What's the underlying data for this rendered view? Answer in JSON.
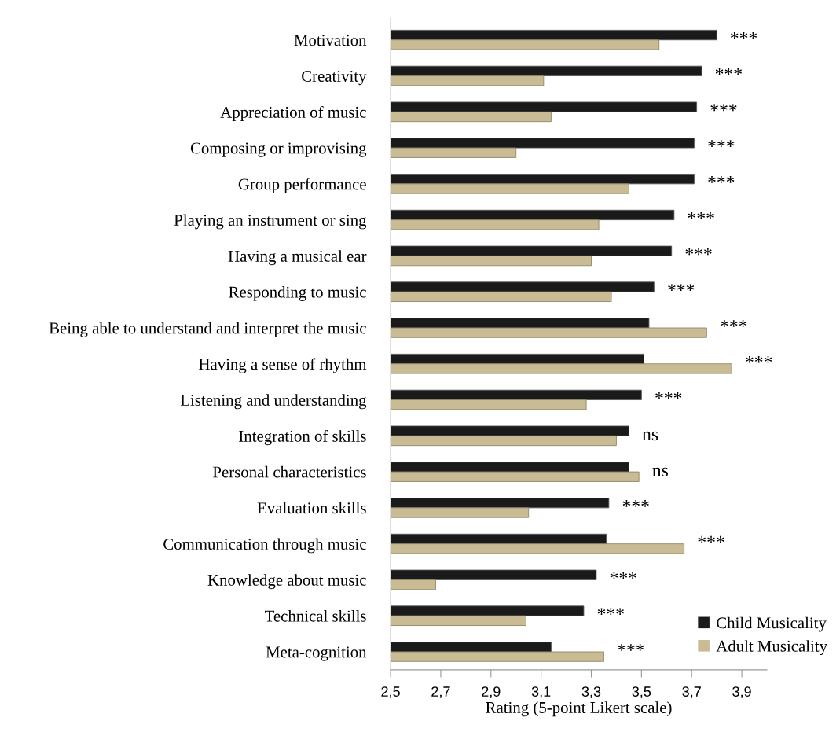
{
  "chart_data": {
    "type": "bar",
    "orientation": "horizontal",
    "xlabel": "Rating (5-point Likert scale)",
    "categories": [
      "Motivation",
      "Creativity",
      "Appreciation of music",
      "Composing or improvising",
      "Group performance",
      "Playing an instrument or sing",
      "Having a musical ear",
      "Responding to music",
      "Being able to understand and interpret the music",
      "Having a sense of rhythm",
      "Listening and understanding",
      "Integration of skills",
      "Personal characteristics",
      "Evaluation skills",
      "Communication through music",
      "Knowledge about music",
      "Technical skills",
      "Meta-cognition"
    ],
    "series": [
      {
        "name": "Child Musicality",
        "color": "#1a1a1a",
        "values": [
          3.8,
          3.74,
          3.72,
          3.71,
          3.71,
          3.63,
          3.62,
          3.55,
          3.53,
          3.51,
          3.5,
          3.45,
          3.45,
          3.37,
          3.36,
          3.32,
          3.27,
          3.14
        ]
      },
      {
        "name": "Adult Musicality",
        "color": "#c9bc94",
        "values": [
          3.57,
          3.11,
          3.14,
          3.0,
          3.45,
          3.33,
          3.3,
          3.38,
          3.76,
          3.86,
          3.28,
          3.4,
          3.49,
          3.05,
          3.67,
          2.68,
          3.04,
          3.35
        ]
      }
    ],
    "xlim": [
      2.5,
      4.0
    ],
    "xticks": [
      {
        "value": 2.5,
        "label": "2,5"
      },
      {
        "value": 2.7,
        "label": "2,7"
      },
      {
        "value": 2.9,
        "label": "2,9"
      },
      {
        "value": 3.1,
        "label": "3,1"
      },
      {
        "value": 3.3,
        "label": "3,3"
      },
      {
        "value": 3.5,
        "label": "3,5"
      },
      {
        "value": 3.7,
        "label": "3,7"
      },
      {
        "value": 3.9,
        "label": "3,9"
      }
    ],
    "annotations": [
      {
        "text": "***",
        "x": 3.8,
        "y": "Motivation"
      },
      {
        "text": "***",
        "x": 3.74,
        "y": "Creativity"
      },
      {
        "text": "***",
        "x": 3.72,
        "y": "Appreciation of music"
      },
      {
        "text": "***",
        "x": 3.71,
        "y": "Composing or improvising"
      },
      {
        "text": "***",
        "x": 3.71,
        "y": "Group performance"
      },
      {
        "text": "***",
        "x": 3.63,
        "y": "Playing an instrument or sing"
      },
      {
        "text": "***",
        "x": 3.62,
        "y": "Having a musical ear"
      },
      {
        "text": "***",
        "x": 3.55,
        "y": "Responding to music"
      },
      {
        "text": "***",
        "x": 3.76,
        "y": "Being able to understand and interpret the music"
      },
      {
        "text": "***",
        "x": 3.86,
        "y": "Having a sense of rhythm"
      },
      {
        "text": "***",
        "x": 3.5,
        "y": "Listening and understanding"
      },
      {
        "text": "ns",
        "x": 3.45,
        "y": "Integration of skills"
      },
      {
        "text": "ns",
        "x": 3.49,
        "y": "Personal characteristics"
      },
      {
        "text": "***",
        "x": 3.37,
        "y": "Evaluation skills"
      },
      {
        "text": "***",
        "x": 3.67,
        "y": "Communication through music"
      },
      {
        "text": "***",
        "x": 3.32,
        "y": "Knowledge about music"
      },
      {
        "text": "***",
        "x": 3.27,
        "y": "Technical skills"
      },
      {
        "text": "***",
        "x": 3.35,
        "y": "Meta-cognition"
      }
    ],
    "legend": "bottom right",
    "grid": false
  }
}
